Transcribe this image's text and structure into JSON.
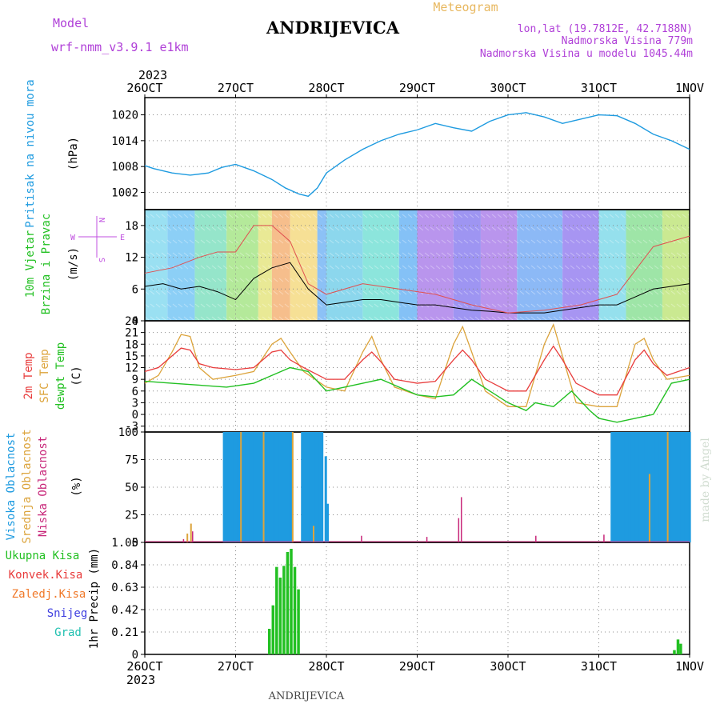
{
  "header": {
    "model_label": "Model",
    "model_name": "wrf-nmm_v3.9.1 e1km",
    "title": "ANDRIJEVICA",
    "meteogram": "Meteogram",
    "lonlat": "lon,lat (19.7812E, 42.7188N)",
    "elevation": "Nadmorska Visina 779m",
    "model_elevation": "Nadmorska Visina u modelu 1045.44m",
    "year_top": "2023",
    "year_bottom": "2023",
    "footer_title": "ANDRIJEVICA",
    "watermark": "made by Angel"
  },
  "colors": {
    "pressure": "#1e9be0",
    "temp2m": "#e83c3c",
    "sfc": "#dca43c",
    "dew": "#22c022",
    "high_cloud": "#1e9be0",
    "mid_cloud": "#dca43c",
    "low_cloud": "#c8287a",
    "rain": "#22c022",
    "konv": "#e83c3c",
    "zaled": "#f07828",
    "snow": "#4040e0",
    "grad": "#20c0b0",
    "wind_label": "#c050e0"
  },
  "chart_data": {
    "type": "meteogram",
    "time_labels": [
      "26OCT",
      "27OCT",
      "28OCT",
      "29OCT",
      "30OCT",
      "31OCT",
      "1NOV"
    ],
    "panels": [
      {
        "id": "pressure",
        "type": "line",
        "label": "Pritisak na nivou mora",
        "unit": "(hPa)",
        "ylim": [
          998,
          1024
        ],
        "yticks": [
          "1020",
          "1014",
          "1008",
          "1002"
        ],
        "ytick_values": [
          1020,
          1014,
          1008,
          1002
        ],
        "series": [
          {
            "name": "Pritisak na nivou mora",
            "x": [
              0,
              0.1,
              0.3,
              0.5,
              0.7,
              0.85,
              1.0,
              1.2,
              1.4,
              1.55,
              1.7,
              1.8,
              1.9,
              2.0,
              2.2,
              2.4,
              2.6,
              2.8,
              3.0,
              3.2,
              3.4,
              3.6,
              3.8,
              4.0,
              4.2,
              4.4,
              4.6,
              4.8,
              5.0,
              5.2,
              5.4,
              5.6,
              5.8,
              6.0
            ],
            "y": [
              1008.2,
              1007.5,
              1006.5,
              1006.0,
              1006.5,
              1007.8,
              1008.5,
              1007.0,
              1005.0,
              1003.0,
              1001.6,
              1001.1,
              1003.0,
              1006.5,
              1009.5,
              1012.0,
              1014.0,
              1015.5,
              1016.5,
              1018.0,
              1017.0,
              1016.2,
              1018.5,
              1020.0,
              1020.5,
              1019.5,
              1018.0,
              1019.0,
              1020.0,
              1019.8,
              1018.0,
              1015.5,
              1014.0,
              1012.0
            ]
          }
        ]
      },
      {
        "id": "wind",
        "type": "line",
        "label": "10m Vjetar",
        "label2": "Brzina i Pravac",
        "unit": "(m/s)",
        "ylim": [
          0,
          21
        ],
        "yticks": [
          "18",
          "12",
          "6",
          "0"
        ],
        "ytick_values": [
          18,
          12,
          6,
          0
        ],
        "compass": {
          "n": "N",
          "s": "S",
          "w": "W",
          "e": "E"
        },
        "series": [
          {
            "name": "brzina",
            "x": [
              0,
              0.2,
              0.4,
              0.6,
              0.8,
              1.0,
              1.2,
              1.4,
              1.6,
              1.8,
              2.0,
              2.2,
              2.4,
              2.6,
              2.8,
              3.0,
              3.2,
              3.4,
              3.6,
              3.8,
              4.0,
              4.2,
              4.4,
              4.6,
              4.8,
              5.0,
              5.2,
              5.4,
              5.6,
              5.8,
              6.0
            ],
            "y": [
              6.5,
              7,
              6,
              6.5,
              5.5,
              4,
              8,
              10,
              11,
              6,
              3,
              3.5,
              4,
              4,
              3.5,
              3,
              3,
              2.5,
              2,
              1.8,
              1.5,
              1.5,
              1.5,
              2,
              2.5,
              3,
              3,
              4.5,
              6,
              6.5,
              7
            ]
          },
          {
            "name": "udari",
            "x": [
              0,
              0.3,
              0.6,
              0.8,
              1.0,
              1.2,
              1.4,
              1.6,
              1.8,
              2.0,
              2.4,
              2.8,
              3.2,
              3.6,
              4.0,
              4.4,
              4.8,
              5.2,
              5.6,
              6.0
            ],
            "y": [
              9,
              10,
              12,
              13,
              13,
              18,
              18,
              15,
              7,
              5,
              7,
              6,
              5,
              3,
              1.5,
              2,
              3,
              5,
              14,
              16
            ]
          }
        ]
      },
      {
        "id": "temperature",
        "type": "line",
        "label": "2m Temp",
        "label2": "SFC Temp",
        "label3": "dewpt Temp",
        "unit": "(C)",
        "ylim": [
          -4.5,
          24
        ],
        "yticks": [
          "24",
          "21",
          "18",
          "15",
          "12",
          "9",
          "6",
          "3",
          "0",
          "-3"
        ],
        "ytick_values": [
          24,
          21,
          18,
          15,
          12,
          9,
          6,
          3,
          0,
          -3
        ],
        "series": [
          {
            "name": "2m Temp",
            "x": [
              0,
              0.15,
              0.3,
              0.4,
              0.5,
              0.6,
              0.75,
              1.0,
              1.2,
              1.4,
              1.5,
              1.6,
              1.75,
              2.0,
              2.2,
              2.4,
              2.5,
              2.6,
              2.75,
              3.0,
              3.2,
              3.4,
              3.5,
              3.6,
              3.75,
              4.0,
              4.2,
              4.4,
              4.5,
              4.6,
              4.75,
              5.0,
              5.2,
              5.4,
              5.5,
              5.6,
              5.75,
              6.0
            ],
            "y": [
              11,
              12,
              15,
              17,
              16.5,
              13,
              12,
              11.5,
              12,
              16,
              16.5,
              14,
              12,
              9,
              9,
              14,
              16,
              13.5,
              9,
              8,
              8.5,
              14,
              16.5,
              14,
              9,
              6,
              6,
              14,
              17.5,
              14,
              8,
              5,
              5,
              14,
              16.5,
              13,
              10,
              12
            ]
          },
          {
            "name": "SFC Temp",
            "x": [
              0,
              0.15,
              0.3,
              0.4,
              0.5,
              0.6,
              0.75,
              1.0,
              1.2,
              1.4,
              1.5,
              1.6,
              1.75,
              2.0,
              2.2,
              2.4,
              2.5,
              2.6,
              2.75,
              3.0,
              3.2,
              3.4,
              3.5,
              3.6,
              3.75,
              4.0,
              4.2,
              4.4,
              4.5,
              4.6,
              4.75,
              5.0,
              5.2,
              5.4,
              5.5,
              5.6,
              5.75,
              6.0
            ],
            "y": [
              8,
              10,
              16,
              20.5,
              20,
              12,
              9,
              10,
              11,
              18,
              19.5,
              16,
              11,
              7,
              6,
              16,
              20,
              14,
              7,
              5,
              4,
              18,
              22.5,
              16,
              6,
              2,
              2,
              18,
              23,
              15,
              3,
              2,
              2,
              18,
              19.5,
              14,
              9,
              10
            ]
          },
          {
            "name": "dewpt Temp",
            "x": [
              0,
              0.3,
              0.6,
              0.9,
              1.2,
              1.4,
              1.6,
              1.8,
              2.0,
              2.2,
              2.4,
              2.6,
              2.8,
              3.0,
              3.2,
              3.4,
              3.6,
              3.8,
              4.0,
              4.2,
              4.3,
              4.5,
              4.7,
              4.9,
              5.0,
              5.2,
              5.4,
              5.6,
              5.8,
              6.0
            ],
            "y": [
              8.5,
              8,
              7.5,
              7,
              8,
              10,
              12,
              11,
              6,
              7,
              8,
              9,
              7,
              5,
              4.5,
              5,
              9,
              6,
              3,
              1,
              3,
              2,
              6,
              1,
              -1,
              -2,
              -1,
              0,
              8,
              9
            ]
          }
        ]
      },
      {
        "id": "clouds",
        "type": "bar",
        "label": "Visoka Oblacnost",
        "label2": "Srednja Oblacnost",
        "label3": "Niska Oblacnost",
        "unit": "(%)",
        "ylim": [
          0,
          100
        ],
        "yticks": [
          "100",
          "75",
          "50",
          "25",
          "0"
        ],
        "ytick_values": [
          100,
          75,
          50,
          25,
          0
        ],
        "series": [
          {
            "name": "Visoka Oblacnost",
            "segments": [
              {
                "from": 0.86,
                "to": 1.62,
                "value": 100
              },
              {
                "from": 1.72,
                "to": 1.95,
                "value": 100
              },
              {
                "from": 5.13,
                "to": 6.0,
                "value": 100
              }
            ],
            "points": [
              {
                "x": 2.0,
                "value": 35
              },
              {
                "x": 1.98,
                "value": 78
              }
            ]
          },
          {
            "name": "Srednja Oblacnost",
            "points": [
              {
                "x": 0.5,
                "value": 17
              },
              {
                "x": 0.46,
                "value": 8
              },
              {
                "x": 1.05,
                "value": 100
              },
              {
                "x": 1.3,
                "value": 100
              },
              {
                "x": 1.62,
                "value": 100
              },
              {
                "x": 1.85,
                "value": 15
              },
              {
                "x": 5.55,
                "value": 62
              },
              {
                "x": 5.75,
                "value": 100
              }
            ]
          },
          {
            "name": "Niska Oblacnost",
            "points": [
              {
                "x": 0.42,
                "value": 3
              },
              {
                "x": 0.52,
                "value": 10
              },
              {
                "x": 2.38,
                "value": 6
              },
              {
                "x": 3.1,
                "value": 5
              },
              {
                "x": 3.45,
                "value": 22
              },
              {
                "x": 3.48,
                "value": 41
              },
              {
                "x": 4.3,
                "value": 6
              },
              {
                "x": 5.05,
                "value": 7
              }
            ]
          }
        ]
      },
      {
        "id": "precip",
        "type": "bar",
        "label": "1hr Precip (mm)",
        "ylim": [
          0,
          1.05
        ],
        "yticks": [
          "1.05",
          "0.84",
          "0.63",
          "0.42",
          "0.21",
          "0"
        ],
        "ytick_values": [
          1.05,
          0.84,
          0.63,
          0.42,
          0.21,
          0
        ],
        "legend": [
          "Ukupna Kisa",
          "Konvek.Kisa",
          "Zaledj.Kisa",
          "Snijeg",
          "Grad"
        ],
        "series": [
          {
            "name": "Ukupna Kisa",
            "x": [
              1.37,
              1.41,
              1.45,
              1.49,
              1.53,
              1.57,
              1.61,
              1.65,
              1.69,
              1.73,
              5.83,
              5.87,
              5.9,
              5.93
            ],
            "y": [
              0.24,
              0.46,
              0.82,
              0.72,
              0.83,
              0.96,
              0.99,
              0.82,
              0.61,
              0.0,
              0.04,
              0.14,
              0.1,
              0.0
            ]
          }
        ]
      }
    ]
  }
}
